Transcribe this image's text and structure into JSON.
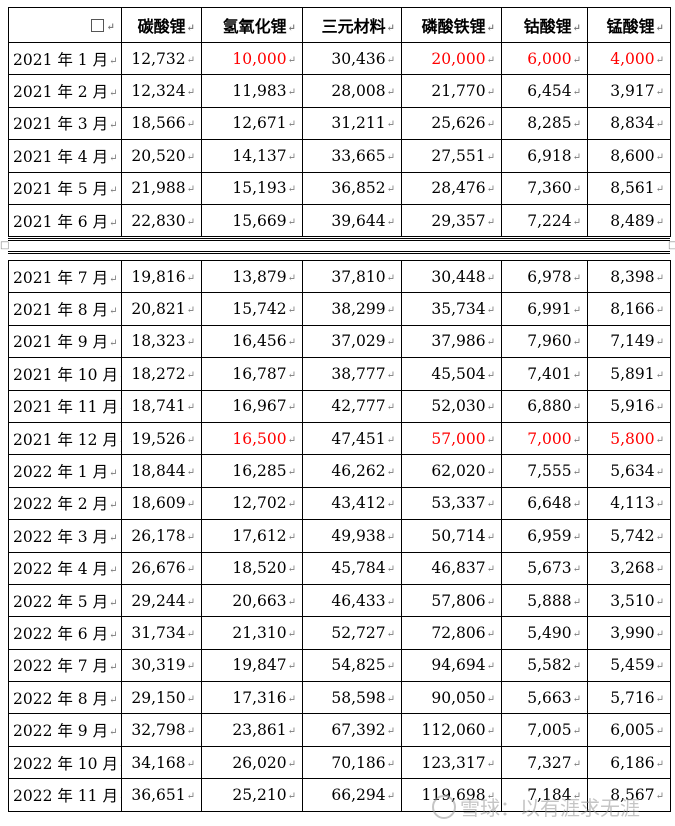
{
  "header": {
    "corner_mark": "↵",
    "columns": [
      "碳酸锂",
      "氢氧化锂",
      "三元材料",
      "磷酸铁锂",
      "钴酸锂",
      "锰酸锂"
    ]
  },
  "rows_part1": [
    {
      "month": "2021 年 1 月",
      "values": [
        "12,732",
        "10,000",
        "30,436",
        "20,000",
        "6,000",
        "4,000"
      ],
      "red": [
        false,
        true,
        false,
        true,
        true,
        true
      ]
    },
    {
      "month": "2021 年 2 月",
      "values": [
        "12,324",
        "11,983",
        "28,008",
        "21,770",
        "6,454",
        "3,917"
      ],
      "red": [
        false,
        false,
        false,
        false,
        false,
        false
      ]
    },
    {
      "month": "2021 年 3 月",
      "values": [
        "18,566",
        "12,671",
        "31,211",
        "25,626",
        "8,285",
        "8,834"
      ],
      "red": [
        false,
        false,
        false,
        false,
        false,
        false
      ]
    },
    {
      "month": "2021 年 4 月",
      "values": [
        "20,520",
        "14,137",
        "33,665",
        "27,551",
        "6,918",
        "8,600"
      ],
      "red": [
        false,
        false,
        false,
        false,
        false,
        false
      ]
    },
    {
      "month": "2021 年 5 月",
      "values": [
        "21,988",
        "15,193",
        "36,852",
        "28,476",
        "7,360",
        "8,561"
      ],
      "red": [
        false,
        false,
        false,
        false,
        false,
        false
      ]
    },
    {
      "month": "2021 年 6 月",
      "values": [
        "22,830",
        "15,669",
        "39,644",
        "29,357",
        "7,224",
        "8,489"
      ],
      "red": [
        false,
        false,
        false,
        false,
        false,
        false
      ]
    }
  ],
  "rows_part2": [
    {
      "month": "2021 年 7 月",
      "values": [
        "19,816",
        "13,879",
        "37,810",
        "30,448",
        "6,978",
        "8,398"
      ],
      "red": [
        false,
        false,
        false,
        false,
        false,
        false
      ]
    },
    {
      "month": "2021 年 8 月",
      "values": [
        "20,821",
        "15,742",
        "38,299",
        "35,734",
        "6,991",
        "8,166"
      ],
      "red": [
        false,
        false,
        false,
        false,
        false,
        false
      ]
    },
    {
      "month": "2021 年 9 月",
      "values": [
        "18,323",
        "16,456",
        "37,029",
        "37,986",
        "7,960",
        "7,149"
      ],
      "red": [
        false,
        false,
        false,
        false,
        false,
        false
      ]
    },
    {
      "month": "2021 年 10 月",
      "values": [
        "18,272",
        "16,787",
        "38,777",
        "45,504",
        "7,401",
        "5,891"
      ],
      "red": [
        false,
        false,
        false,
        false,
        false,
        false
      ]
    },
    {
      "month": "2021 年 11 月",
      "values": [
        "18,741",
        "16,967",
        "42,777",
        "52,030",
        "6,880",
        "5,916"
      ],
      "red": [
        false,
        false,
        false,
        false,
        false,
        false
      ]
    },
    {
      "month": "2021 年 12 月",
      "values": [
        "19,526",
        "16,500",
        "47,451",
        "57,000",
        "7,000",
        "5,800"
      ],
      "red": [
        false,
        true,
        false,
        true,
        true,
        true
      ]
    },
    {
      "month": "2022 年 1 月",
      "values": [
        "18,844",
        "16,285",
        "46,262",
        "62,020",
        "7,555",
        "5,634"
      ],
      "red": [
        false,
        false,
        false,
        false,
        false,
        false
      ]
    },
    {
      "month": "2022 年 2 月",
      "values": [
        "18,609",
        "12,702",
        "43,412",
        "53,337",
        "6,648",
        "4,113"
      ],
      "red": [
        false,
        false,
        false,
        false,
        false,
        false
      ]
    },
    {
      "month": "2022 年 3 月",
      "values": [
        "26,178",
        "17,612",
        "49,938",
        "50,714",
        "6,959",
        "5,742"
      ],
      "red": [
        false,
        false,
        false,
        false,
        false,
        false
      ]
    },
    {
      "month": "2022 年 4 月",
      "values": [
        "26,676",
        "18,520",
        "45,784",
        "46,837",
        "5,673",
        "3,268"
      ],
      "red": [
        false,
        false,
        false,
        false,
        false,
        false
      ]
    },
    {
      "month": "2022 年 5 月",
      "values": [
        "29,244",
        "20,663",
        "46,433",
        "57,806",
        "5,888",
        "3,510"
      ],
      "red": [
        false,
        false,
        false,
        false,
        false,
        false
      ]
    },
    {
      "month": "2022 年 6 月",
      "values": [
        "31,734",
        "21,310",
        "52,727",
        "72,806",
        "5,490",
        "3,990"
      ],
      "red": [
        false,
        false,
        false,
        false,
        false,
        false
      ]
    },
    {
      "month": "2022 年 7 月",
      "values": [
        "30,319",
        "19,847",
        "54,825",
        "94,694",
        "5,582",
        "5,459"
      ],
      "red": [
        false,
        false,
        false,
        false,
        false,
        false
      ]
    },
    {
      "month": "2022 年 8 月",
      "values": [
        "29,150",
        "17,316",
        "58,598",
        "90,050",
        "5,663",
        "5,716"
      ],
      "red": [
        false,
        false,
        false,
        false,
        false,
        false
      ]
    },
    {
      "month": "2022 年 9 月",
      "values": [
        "32,798",
        "23,861",
        "67,392",
        "112,060",
        "7,005",
        "6,005"
      ],
      "red": [
        false,
        false,
        false,
        false,
        false,
        false
      ]
    },
    {
      "month": "2022 年 10 月",
      "values": [
        "34,168",
        "26,020",
        "70,186",
        "123,317",
        "7,327",
        "6,186"
      ],
      "red": [
        false,
        false,
        false,
        false,
        false,
        false
      ]
    },
    {
      "month": "2022 年 11 月",
      "values": [
        "36,651",
        "25,210",
        "66,294",
        "119,698",
        "7,184",
        "8,567"
      ],
      "red": [
        false,
        false,
        false,
        false,
        false,
        false
      ]
    }
  ],
  "cell_mark": "↵",
  "colors": {
    "highlight": "#ff0000",
    "text": "#000000",
    "grid": "#000000"
  },
  "watermark": "雪球：以有涯求无涯"
}
